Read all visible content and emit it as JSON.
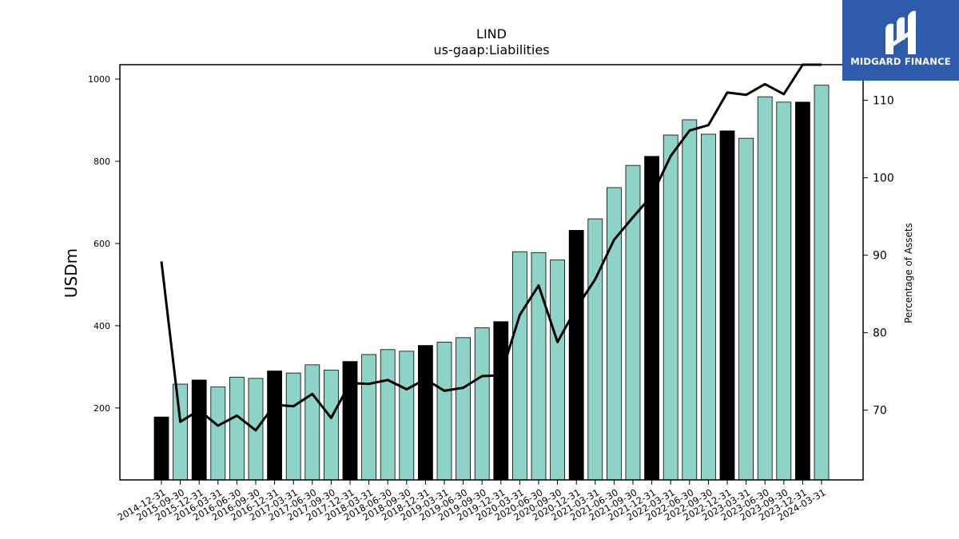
{
  "brand": {
    "name": "MIDGARD FINANCE",
    "mark": "midgard-logo-mark"
  },
  "colors": {
    "bar_normal": "#8dd3c7",
    "bar_highlight": "#000000",
    "line": "#000000",
    "logo_bg": "#2e5bab"
  },
  "chart_data": {
    "type": "bar",
    "title": "LIND",
    "subtitle": "us-gaap:Liabilities",
    "ylabel": "USDm",
    "y2label": "Percentage of Assets",
    "ylim": [
      25,
      1035
    ],
    "y2lim": [
      61,
      114.6
    ],
    "yticks": [
      200,
      400,
      600,
      800,
      1000
    ],
    "y2ticks": [
      70,
      80,
      90,
      100,
      110
    ],
    "categories": [
      "2014-12-31",
      "2015-09-30",
      "2015-12-31",
      "2016-03-31",
      "2016-06-30",
      "2016-09-30",
      "2016-12-31",
      "2017-03-31",
      "2017-06-30",
      "2017-09-30",
      "2017-12-31",
      "2018-03-31",
      "2018-06-30",
      "2018-09-30",
      "2018-12-31",
      "2019-03-31",
      "2019-06-30",
      "2019-09-30",
      "2019-12-31",
      "2020-03-31",
      "2020-06-30",
      "2020-09-30",
      "2020-12-31",
      "2021-03-31",
      "2021-06-30",
      "2021-09-30",
      "2021-12-31",
      "2022-03-31",
      "2022-06-30",
      "2022-09-30",
      "2022-12-31",
      "2023-03-31",
      "2023-06-30",
      "2023-09-30",
      "2023-12-31",
      "2024-03-31"
    ],
    "series": [
      {
        "kind": "bar",
        "values": [
          178,
          258,
          268,
          251,
          275,
          272,
          290,
          285,
          305,
          292,
          313,
          330,
          342,
          338,
          352,
          360,
          371,
          395,
          410,
          580,
          578,
          560,
          632,
          660,
          736,
          790,
          812,
          864,
          901,
          866,
          874,
          856,
          957,
          944,
          944,
          985
        ],
        "highlight": [
          true,
          false,
          true,
          false,
          false,
          false,
          true,
          false,
          false,
          false,
          true,
          false,
          false,
          false,
          true,
          false,
          false,
          false,
          true,
          false,
          false,
          false,
          true,
          false,
          false,
          false,
          true,
          false,
          false,
          false,
          true,
          false,
          false,
          false,
          true,
          false
        ]
      },
      {
        "kind": "line",
        "axis": "right",
        "values": [
          89.2,
          68.5,
          70.0,
          68.0,
          69.3,
          67.4,
          70.7,
          70.5,
          72.1,
          69.0,
          73.5,
          73.4,
          73.9,
          72.7,
          74.0,
          72.5,
          72.9,
          74.4,
          74.5,
          82.3,
          86.1,
          78.8,
          83.2,
          86.9,
          92.0,
          94.9,
          97.7,
          102.8,
          106.1,
          106.8,
          111.0,
          110.7,
          112.1,
          110.8,
          114.6,
          114.6
        ]
      }
    ]
  }
}
